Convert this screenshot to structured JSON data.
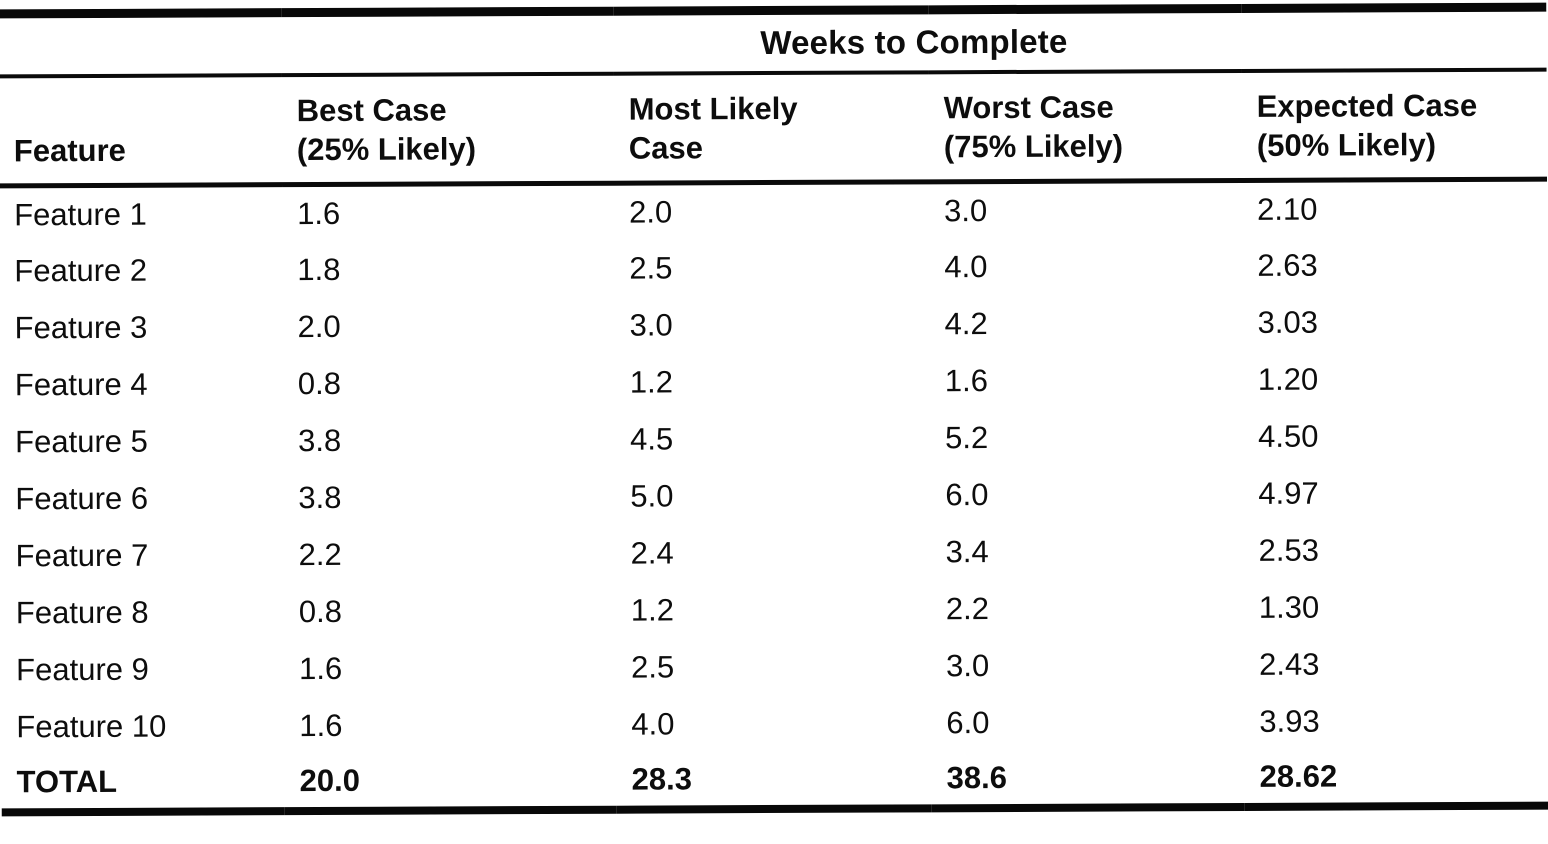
{
  "page": {
    "background_color": "#ffffff",
    "text_color": "#0d0d0d",
    "rule_color": "#080808"
  },
  "table": {
    "title": "Weeks to Complete",
    "columns": [
      {
        "label": "Feature",
        "sub": ""
      },
      {
        "label": "Best Case",
        "sub": "(25% Likely)"
      },
      {
        "label": "Most Likely",
        "sub": "Case"
      },
      {
        "label": "Worst Case",
        "sub": "(75% Likely)"
      },
      {
        "label": "Expected Case",
        "sub": "(50% Likely)"
      }
    ],
    "rows": [
      [
        "Feature 1",
        "1.6",
        "2.0",
        "3.0",
        "2.10"
      ],
      [
        "Feature 2",
        "1.8",
        "2.5",
        "4.0",
        "2.63"
      ],
      [
        "Feature 3",
        "2.0",
        "3.0",
        "4.2",
        "3.03"
      ],
      [
        "Feature 4",
        "0.8",
        "1.2",
        "1.6",
        "1.20"
      ],
      [
        "Feature 5",
        "3.8",
        "4.5",
        "5.2",
        "4.50"
      ],
      [
        "Feature 6",
        "3.8",
        "5.0",
        "6.0",
        "4.97"
      ],
      [
        "Feature 7",
        "2.2",
        "2.4",
        "3.4",
        "2.53"
      ],
      [
        "Feature 8",
        "0.8",
        "1.2",
        "2.2",
        "1.30"
      ],
      [
        "Feature 9",
        "1.6",
        "2.5",
        "3.0",
        "2.43"
      ],
      [
        "Feature 10",
        "1.6",
        "4.0",
        "6.0",
        "3.93"
      ]
    ],
    "total_row": [
      "TOTAL",
      "20.0",
      "28.3",
      "38.6",
      "28.62"
    ]
  }
}
